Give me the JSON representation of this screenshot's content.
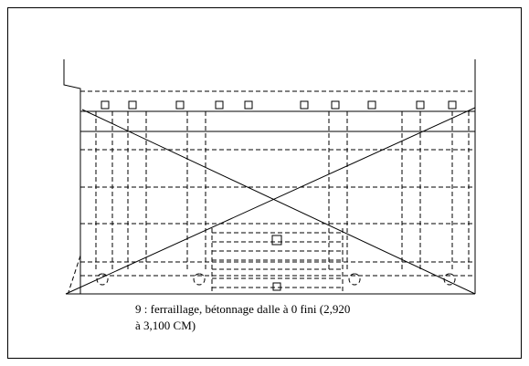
{
  "caption": {
    "lines": [
      "9 : ferraillage, bétonnage dalle à 0 fini (2,920",
      "à 3,100 CM)"
    ]
  }
}
